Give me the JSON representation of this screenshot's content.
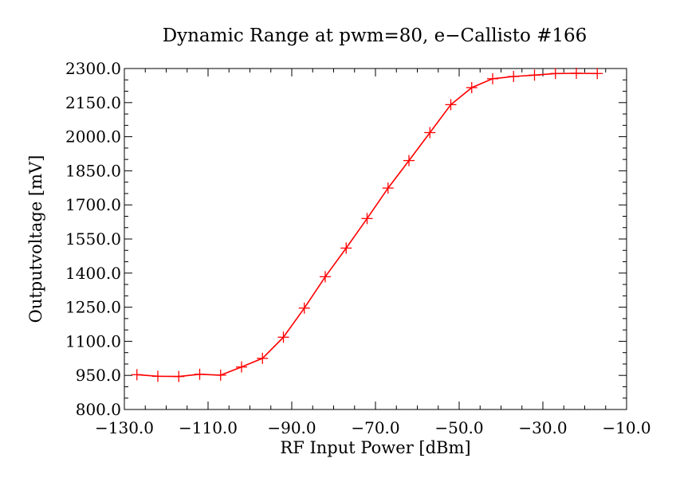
{
  "chart_data": {
    "type": "line",
    "title": "Dynamic Range at pwm=80, e−Callisto #166",
    "xlabel": "RF Input Power [dBm]",
    "ylabel": "Outputvoltage [mV]",
    "xlim": [
      -130,
      -10
    ],
    "ylim": [
      800,
      2300
    ],
    "x_ticks": [
      -130,
      -110,
      -90,
      -70,
      -50,
      -30,
      -10
    ],
    "x_tick_labels": [
      "−130.0",
      "−110.0",
      "−90.0",
      "−70.0",
      "−50.0",
      "−30.0",
      "−10.0"
    ],
    "y_ticks": [
      800,
      950,
      1100,
      1250,
      1400,
      1550,
      1700,
      1850,
      2000,
      2150,
      2300
    ],
    "y_tick_labels": [
      "800.0",
      "950.0",
      "1100.0",
      "1250.0",
      "1400.0",
      "1550.0",
      "1700.0",
      "1850.0",
      "2000.0",
      "2150.0",
      "2300.0"
    ],
    "grid": false,
    "series": [
      {
        "name": "Outputvoltage",
        "color": "#ff0000",
        "marker": "plus",
        "x": [
          -127,
          -122,
          -117,
          -112,
          -107,
          -102,
          -97,
          -92,
          -87,
          -82,
          -77,
          -72,
          -67,
          -62,
          -57,
          -52,
          -47,
          -42,
          -37,
          -32,
          -27,
          -22,
          -17
        ],
        "y": [
          953,
          946,
          945,
          955,
          951,
          987,
          1025,
          1118,
          1246,
          1384,
          1510,
          1640,
          1774,
          1895,
          2018,
          2141,
          2216,
          2255,
          2265,
          2271,
          2278,
          2279,
          2278
        ]
      }
    ]
  }
}
